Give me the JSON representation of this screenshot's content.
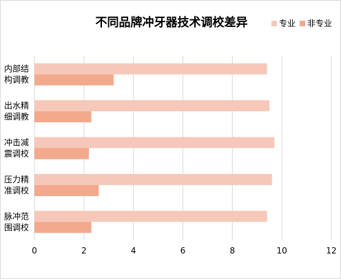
{
  "chart_data": {
    "type": "bar",
    "orientation": "horizontal",
    "title": "不同品牌冲牙器技术调校差异",
    "categories": [
      [
        "内部结",
        "构调教"
      ],
      [
        "出水精",
        "细调教"
      ],
      [
        "冲击减",
        "震调校"
      ],
      [
        "压力精",
        "准调校"
      ],
      [
        "脉冲范",
        "围调校"
      ]
    ],
    "series": [
      {
        "name": "专业",
        "color": "#f6c8b9",
        "values": [
          9.4,
          9.5,
          9.7,
          9.6,
          9.4
        ]
      },
      {
        "name": "非专业",
        "color": "#f2a98c",
        "values": [
          3.2,
          2.3,
          2.2,
          2.6,
          2.3
        ]
      }
    ],
    "xlim": [
      0,
      12
    ],
    "xticks": [
      0,
      2,
      4,
      6,
      8,
      10,
      12
    ],
    "grid": true,
    "legend_position": "top-right"
  }
}
